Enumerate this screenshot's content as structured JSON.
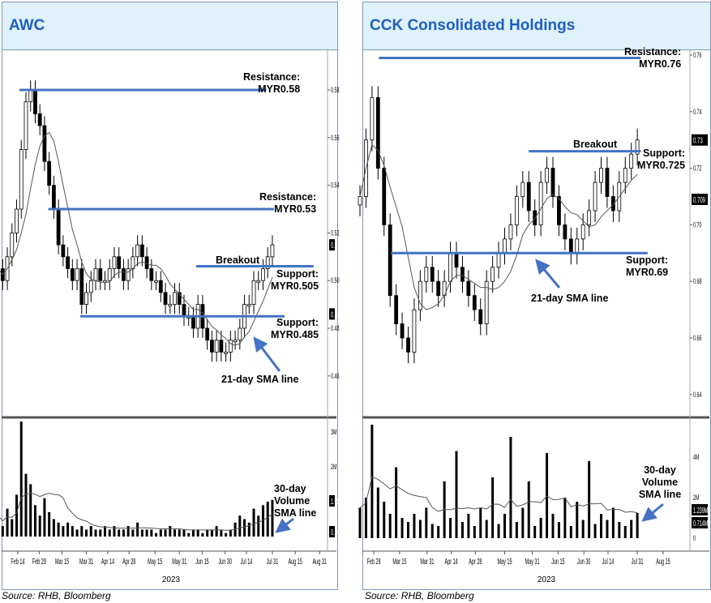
{
  "colors": {
    "title": "#1f5fbf",
    "level_line": "#4472c4",
    "header_bg": "#dff1f9",
    "arrow": "#4472c4"
  },
  "source": "Source: RHB, Bloomberg",
  "chart_data": [
    {
      "type": "candlestick",
      "title": "AWC",
      "year_label": "2023",
      "x_start": "2023-02-01",
      "x_end": "2023-07-31",
      "x_ticks": [
        "Feb 14",
        "Feb 28",
        "Mar 15",
        "Mar 31",
        "Apr 14",
        "Apr 28",
        "May 15",
        "May 31",
        "Jun 15",
        "Jun 30",
        "Jul 14",
        "Jul 31",
        "Aug 15",
        "Aug 31"
      ],
      "y_ticks": [
        "0.58",
        "0.56",
        "0.54",
        "0.52",
        "0.50",
        "0.48",
        "0.46"
      ],
      "ylim": [
        0.445,
        0.595
      ],
      "last_price_label": "0.515",
      "sma_price_label": "0.486",
      "volume_ticks": [
        "3M",
        "2M"
      ],
      "volume_ylim": [
        0,
        3.5
      ],
      "last_volume_label": "1.050M",
      "sma_volume_label": "0.247M",
      "closes": [
        0.505,
        0.5,
        0.51,
        0.52,
        0.53,
        0.555,
        0.575,
        0.58,
        0.57,
        0.565,
        0.55,
        0.54,
        0.53,
        0.515,
        0.51,
        0.505,
        0.5,
        0.505,
        0.49,
        0.495,
        0.5,
        0.505,
        0.5,
        0.5,
        0.505,
        0.51,
        0.505,
        0.5,
        0.505,
        0.51,
        0.515,
        0.51,
        0.505,
        0.5,
        0.5,
        0.495,
        0.49,
        0.49,
        0.495,
        0.49,
        0.485,
        0.485,
        0.48,
        0.49,
        0.48,
        0.475,
        0.47,
        0.475,
        0.47,
        0.47,
        0.475,
        0.475,
        0.48,
        0.49,
        0.49,
        0.5,
        0.5,
        0.505,
        0.51,
        0.515
      ],
      "volumes": [
        0.6,
        0.3,
        0.8,
        0.5,
        1.2,
        3.3,
        1.8,
        1.5,
        0.9,
        0.6,
        1.1,
        0.7,
        0.5,
        0.4,
        0.3,
        0.4,
        0.3,
        0.2,
        0.3,
        0.2,
        0.3,
        0.2,
        0.2,
        0.3,
        0.2,
        0.3,
        0.2,
        0.2,
        0.3,
        0.2,
        0.4,
        0.2,
        0.2,
        0.2,
        0.1,
        0.2,
        0.2,
        0.3,
        0.2,
        0.2,
        0.2,
        0.1,
        0.2,
        0.2,
        0.1,
        0.2,
        0.2,
        0.3,
        0.2,
        0.1,
        0.2,
        0.4,
        0.6,
        0.5,
        0.4,
        0.8,
        0.6,
        0.9,
        1.0,
        1.05
      ],
      "sma_label": "21-day SMA line",
      "volume_sma_label": "30-day Volume SMA line",
      "levels": [
        {
          "label": "Resistance:",
          "value_label": "MYR0.58",
          "price": 0.58,
          "from": "2023-02-15",
          "to": "2023-07-27"
        },
        {
          "label": "Resistance:",
          "value_label": "MYR0.53",
          "price": 0.53,
          "from": "2023-03-06",
          "to": "2023-08-01"
        },
        {
          "label": "Breakout",
          "value_label": "",
          "price": 0.506,
          "from": "2023-06-11",
          "to": "2023-08-27"
        },
        {
          "label": "Support:",
          "value_label": "MYR0.505",
          "price": 0.506,
          "from": "2023-06-11",
          "to": "2023-08-27"
        },
        {
          "label": "Support:",
          "value_label": "MYR0.485",
          "price": 0.485,
          "from": "2023-03-27",
          "to": "2023-08-08"
        }
      ]
    },
    {
      "type": "candlestick",
      "title": "CCK Consolidated Holdings",
      "year_label": "2023",
      "x_start": "2023-02-20",
      "x_end": "2023-07-31",
      "x_ticks": [
        "Feb 28",
        "Mar 15",
        "Mar 31",
        "Apr 14",
        "Apr 28",
        "May 15",
        "May 31",
        "Jun 15",
        "Jun 30",
        "Jul 14",
        "Jul 31",
        "Aug 15"
      ],
      "y_ticks": [
        "0.76",
        "0.74",
        "0.72",
        "0.70",
        "0.68",
        "0.66",
        "0.64"
      ],
      "ylim": [
        0.635,
        0.762
      ],
      "last_price_label": "0.73",
      "sma_price_label": "0.709",
      "volume_ticks": [
        "4M",
        "2M",
        "0"
      ],
      "volume_ylim": [
        0,
        6
      ],
      "last_volume_label": "1.239M",
      "sma_volume_label": "0.714M",
      "closes": [
        0.71,
        0.73,
        0.745,
        0.72,
        0.7,
        0.675,
        0.665,
        0.66,
        0.655,
        0.67,
        0.68,
        0.685,
        0.68,
        0.675,
        0.68,
        0.69,
        0.685,
        0.68,
        0.675,
        0.67,
        0.665,
        0.68,
        0.685,
        0.69,
        0.695,
        0.7,
        0.71,
        0.715,
        0.705,
        0.7,
        0.715,
        0.72,
        0.71,
        0.7,
        0.695,
        0.69,
        0.695,
        0.7,
        0.705,
        0.715,
        0.72,
        0.71,
        0.705,
        0.715,
        0.72,
        0.725,
        0.73
      ],
      "volumes": [
        1.5,
        2.0,
        5.6,
        2.5,
        1.8,
        1.2,
        3.5,
        1.0,
        0.8,
        1.2,
        0.9,
        1.5,
        0.7,
        0.6,
        2.8,
        1.0,
        4.3,
        0.8,
        1.2,
        0.6,
        1.5,
        0.9,
        3.0,
        0.7,
        1.2,
        5.0,
        0.8,
        1.5,
        2.8,
        0.6,
        1.0,
        4.2,
        1.2,
        0.8,
        2.0,
        0.6,
        1.8,
        0.9,
        3.8,
        0.7,
        1.2,
        0.9,
        1.5,
        0.8,
        0.6,
        0.9,
        1.24
      ],
      "sma_label": "21-day SMA line",
      "volume_sma_label": "30-day Volume SMA line",
      "levels": [
        {
          "label": "Resistance:",
          "value_label": "MYR0.76",
          "price": 0.759,
          "from": "2023-03-03",
          "to": "2023-08-02"
        },
        {
          "label": "Breakout",
          "value_label": "",
          "price": 0.726,
          "from": "2023-05-29",
          "to": "2023-08-02"
        },
        {
          "label": "Support:",
          "value_label": "MYR0.725",
          "price": 0.726,
          "from": "2023-05-29",
          "to": "2023-08-02"
        },
        {
          "label": "Support:",
          "value_label": "MYR0.69",
          "price": 0.69,
          "from": "2023-03-10",
          "to": "2023-08-06"
        }
      ]
    }
  ]
}
